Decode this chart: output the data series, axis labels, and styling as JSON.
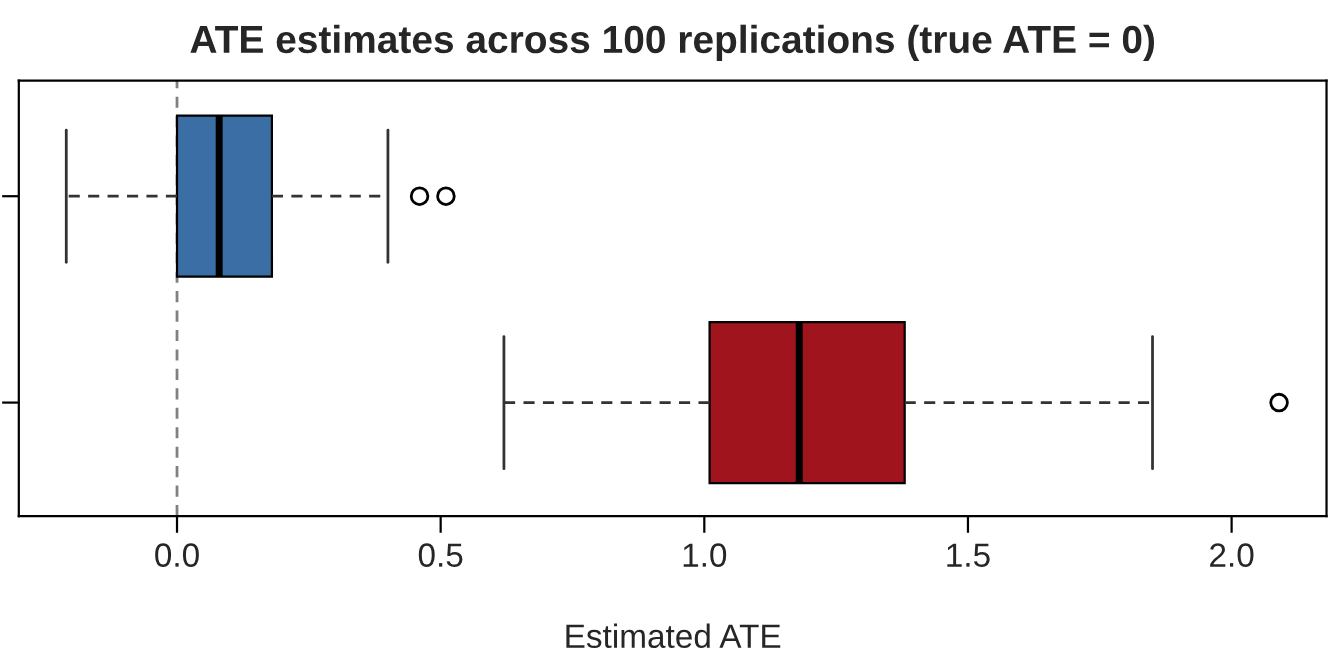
{
  "chart_data": {
    "type": "box",
    "orientation": "horizontal",
    "title": "ATE estimates across 100 replications (true ATE = 0)",
    "xlabel": "Estimated ATE",
    "categories": [
      null,
      null
    ],
    "series": [
      {
        "color": "#3a6ea5",
        "boxes": [
          {
            "low": -0.21,
            "q1": 0.0,
            "median": 0.08,
            "q3": 0.18,
            "high": 0.4,
            "outliers": [
              0.46,
              0.51
            ]
          },
          null
        ]
      },
      {
        "color": "#a0141e",
        "boxes": [
          null,
          {
            "low": 0.62,
            "q1": 1.01,
            "median": 1.18,
            "q3": 1.38,
            "high": 1.85,
            "outliers": [
              2.09
            ]
          }
        ]
      }
    ],
    "xlim": [
      -0.3,
      2.18
    ],
    "xticks": [
      {
        "value": 0,
        "label": "0.0"
      },
      {
        "value": 0.5,
        "label": "0.5"
      },
      {
        "value": 1,
        "label": "1.0"
      },
      {
        "value": 1.5,
        "label": "1.5"
      },
      {
        "value": 2,
        "label": "2.0"
      }
    ],
    "ref_lines": [
      {
        "axis": "x",
        "value": 0,
        "color": "#808080",
        "line_style": "dashed"
      }
    ],
    "grid": false
  }
}
